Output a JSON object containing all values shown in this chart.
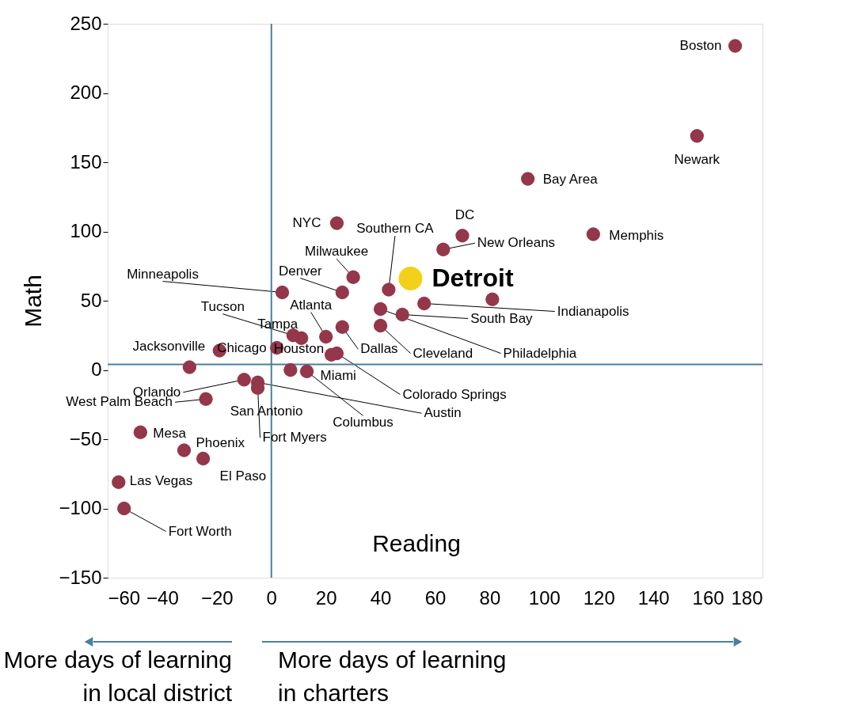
{
  "chart_data": {
    "type": "scatter",
    "xlabel": "Reading",
    "ylabel": "Math",
    "xlim": [
      -60,
      180
    ],
    "xticks": [
      -60,
      -40,
      -20,
      0,
      20,
      40,
      60,
      80,
      100,
      120,
      140,
      160,
      180
    ],
    "ylim": [
      -150,
      250
    ],
    "yticks": [
      -150,
      -100,
      -50,
      0,
      50,
      100,
      150,
      200,
      250
    ],
    "grid": false,
    "legend": false,
    "marker": "circle",
    "ref_lines": [
      {
        "axis": "x",
        "value": 0,
        "color": "#4a7fa0"
      },
      {
        "axis": "y",
        "value": 4,
        "color": "#4a7fa0"
      }
    ],
    "series": [
      {
        "color": "#94374a",
        "x": [
          170,
          156,
          94,
          70,
          63,
          118,
          24,
          30,
          26,
          4,
          43,
          56,
          81,
          48,
          40,
          40,
          26,
          11,
          8,
          20,
          -19,
          2,
          7,
          22,
          24,
          13,
          -10,
          -5,
          -5,
          -24,
          -30,
          -48,
          -32,
          -25,
          -56,
          -54
        ],
        "values": [
          234,
          169,
          138,
          97,
          87,
          98,
          106,
          67,
          56,
          56,
          58,
          48,
          51,
          40,
          44,
          32,
          31,
          23,
          25,
          24,
          14,
          16,
          0,
          11,
          12,
          -1,
          -7,
          -9,
          -13,
          -21,
          2,
          -45,
          -58,
          -64,
          -81,
          -100
        ]
      },
      {
        "color": "#f3d01a",
        "x": [
          51
        ],
        "values": [
          66
        ]
      }
    ],
    "annotations": [
      {
        "text": "Boston",
        "x": 170,
        "y": 234
      },
      {
        "text": "Newark",
        "x": 156,
        "y": 169
      },
      {
        "text": "Bay Area",
        "x": 94,
        "y": 138
      },
      {
        "text": "DC",
        "x": 70,
        "y": 97
      },
      {
        "text": "New Orleans",
        "x": 63,
        "y": 87
      },
      {
        "text": "Memphis",
        "x": 118,
        "y": 98
      },
      {
        "text": "NYC",
        "x": 24,
        "y": 106
      },
      {
        "text": "Milwaukee",
        "x": 30,
        "y": 67
      },
      {
        "text": "Denver",
        "x": 26,
        "y": 56
      },
      {
        "text": "Minneapolis",
        "x": 4,
        "y": 56
      },
      {
        "text": "Southern CA",
        "x": 43,
        "y": 58
      },
      {
        "text": "Indianapolis",
        "x": 56,
        "y": 48
      },
      {
        "text": "South Bay",
        "x": 48,
        "y": 40
      },
      {
        "text": "Philadelphia",
        "x": 40,
        "y": 44
      },
      {
        "text": "Cleveland",
        "x": 40,
        "y": 32
      },
      {
        "text": "Dallas",
        "x": 26,
        "y": 31
      },
      {
        "text": "Tampa",
        "x": 11,
        "y": 23
      },
      {
        "text": "Tucson",
        "x": 8,
        "y": 25
      },
      {
        "text": "Atlanta",
        "x": 20,
        "y": 24
      },
      {
        "text": "Jacksonville",
        "x": -19,
        "y": 14
      },
      {
        "text": "Chicago",
        "x": 2,
        "y": 16
      },
      {
        "text": "Houston",
        "x": 7,
        "y": 0
      },
      {
        "text": "Miami",
        "x": 22,
        "y": 11
      },
      {
        "text": "Colorado Springs",
        "x": 24,
        "y": 12
      },
      {
        "text": "Columbus",
        "x": 13,
        "y": -1
      },
      {
        "text": "Austin",
        "x": -5,
        "y": -9
      },
      {
        "text": "Orlando",
        "x": -10,
        "y": -7
      },
      {
        "text": "San Antonio",
        "x": -5,
        "y": -13
      },
      {
        "text": "Fort Myers",
        "x": -5,
        "y": -13
      },
      {
        "text": "West Palm Beach",
        "x": -24,
        "y": -21
      },
      {
        "text": "Mesa",
        "x": -48,
        "y": -45
      },
      {
        "text": "Phoenix",
        "x": -32,
        "y": -58
      },
      {
        "text": "El Paso",
        "x": -25,
        "y": -64
      },
      {
        "text": "Las Vegas",
        "x": -56,
        "y": -81
      },
      {
        "text": "Fort Worth",
        "x": -54,
        "y": -100
      },
      {
        "text": "Detroit",
        "x": 51,
        "y": 66
      },
      "More days of learning\nin local district",
      "More days of learning\nin charters"
    ]
  }
}
